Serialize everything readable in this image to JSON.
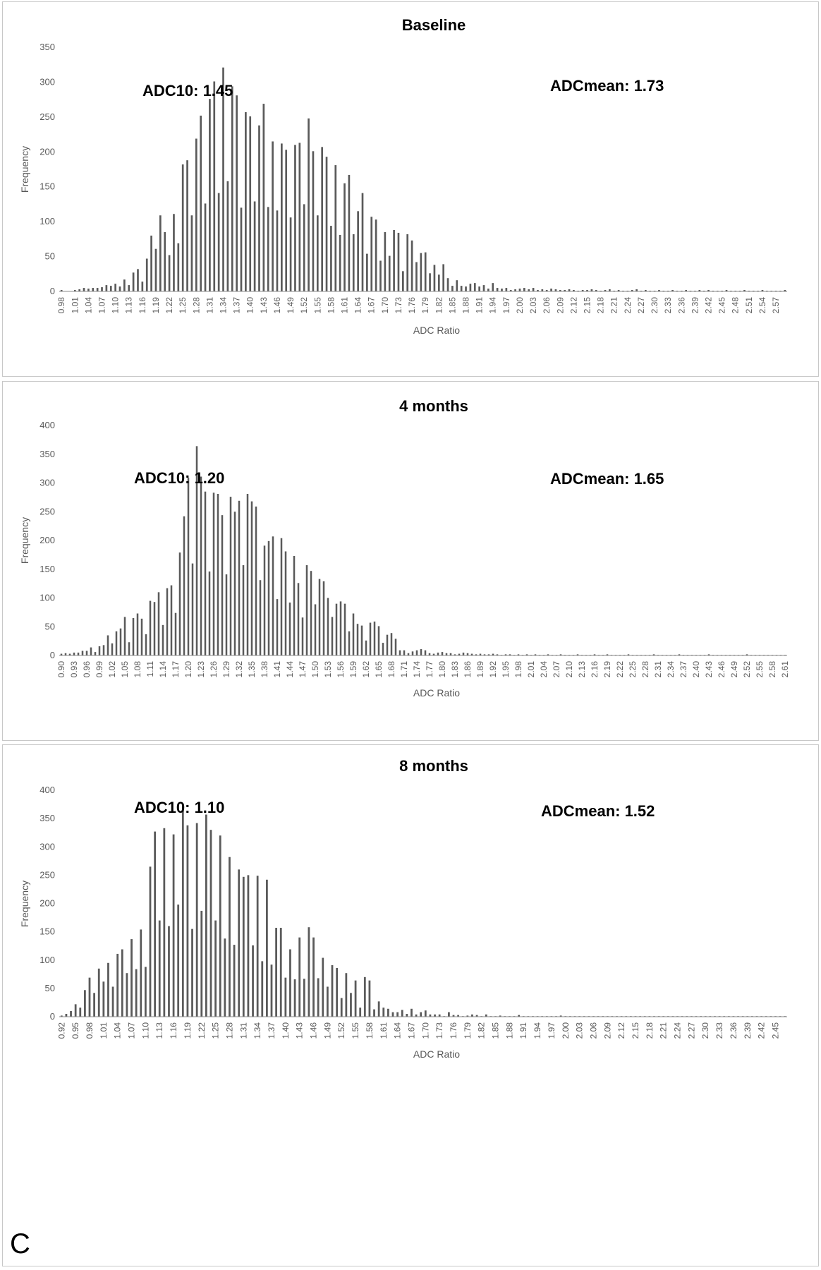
{
  "figure": {
    "panel_letter": "C"
  },
  "colors": {
    "bar": "#5a5a5a",
    "axis": "#8a8a8a",
    "text": "#000000",
    "tick_text": "#595959"
  },
  "chart_data": [
    {
      "type": "bar",
      "title": "Baseline",
      "xlabel": "ADC Ratio",
      "ylabel": "Frequency",
      "ylim": [
        0,
        350
      ],
      "yticks": [
        0,
        50,
        100,
        150,
        200,
        250,
        300,
        350
      ],
      "grid": false,
      "annotations": {
        "adc10": "ADC10:  1.45",
        "adcmean": "ADCmean: 1.73"
      },
      "categories": [
        "0.98",
        "0.99",
        "1.00",
        "1.01",
        "1.02",
        "1.03",
        "1.04",
        "1.05",
        "1.06",
        "1.07",
        "1.08",
        "1.09",
        "1.10",
        "1.11",
        "1.12",
        "1.13",
        "1.14",
        "1.15",
        "1.16",
        "1.17",
        "1.18",
        "1.19",
        "1.20",
        "1.21",
        "1.22",
        "1.23",
        "1.24",
        "1.25",
        "1.26",
        "1.27",
        "1.28",
        "1.29",
        "1.30",
        "1.31",
        "1.32",
        "1.33",
        "1.34",
        "1.35",
        "1.36",
        "1.37",
        "1.38",
        "1.39",
        "1.40",
        "1.41",
        "1.42",
        "1.43",
        "1.44",
        "1.45",
        "1.46",
        "1.47",
        "1.48",
        "1.49",
        "1.50",
        "1.51",
        "1.52",
        "1.53",
        "1.54",
        "1.55",
        "1.56",
        "1.57",
        "1.58",
        "1.59",
        "1.60",
        "1.61",
        "1.62",
        "1.63",
        "1.64",
        "1.65",
        "1.66",
        "1.67",
        "1.68",
        "1.69",
        "1.70",
        "1.71",
        "1.72",
        "1.73",
        "1.74",
        "1.75",
        "1.76",
        "1.77",
        "1.78",
        "1.79",
        "1.80",
        "1.81",
        "1.82",
        "1.83",
        "1.84",
        "1.85",
        "1.86",
        "1.87",
        "1.88",
        "1.89",
        "1.90",
        "1.91",
        "1.92",
        "1.93",
        "1.94",
        "1.95",
        "1.96",
        "1.97",
        "1.98",
        "1.99",
        "2.00",
        "2.01",
        "2.02",
        "2.03",
        "2.04",
        "2.05",
        "2.06",
        "2.07",
        "2.08",
        "2.09",
        "2.10",
        "2.11",
        "2.12",
        "2.13",
        "2.14",
        "2.15",
        "2.16",
        "2.17",
        "2.18",
        "2.19",
        "2.20",
        "2.21",
        "2.22",
        "2.23",
        "2.24",
        "2.25",
        "2.26",
        "2.27",
        "2.28",
        "2.29",
        "2.30",
        "2.31",
        "2.32",
        "2.33",
        "2.34",
        "2.35",
        "2.36",
        "2.37",
        "2.38",
        "2.39",
        "2.40",
        "2.41",
        "2.42",
        "2.43",
        "2.44",
        "2.45",
        "2.46",
        "2.47",
        "2.48",
        "2.49",
        "2.50",
        "2.51",
        "2.52",
        "2.53",
        "2.54",
        "2.55",
        "2.56",
        "2.57",
        "2.58",
        "2.59"
      ],
      "values": [
        2,
        0,
        0,
        2,
        3,
        5,
        4,
        5,
        5,
        6,
        9,
        8,
        11,
        7,
        17,
        9,
        27,
        32,
        14,
        47,
        80,
        61,
        109,
        85,
        52,
        111,
        69,
        182,
        188,
        109,
        219,
        252,
        126,
        276,
        301,
        141,
        321,
        158,
        294,
        281,
        120,
        257,
        251,
        129,
        238,
        269,
        121,
        215,
        116,
        212,
        203,
        106,
        210,
        213,
        125,
        248,
        201,
        109,
        207,
        193,
        94,
        181,
        81,
        155,
        167,
        82,
        115,
        141,
        54,
        107,
        103,
        44,
        85,
        51,
        88,
        84,
        29,
        82,
        73,
        42,
        55,
        56,
        26,
        38,
        24,
        39,
        19,
        8,
        16,
        8,
        7,
        11,
        12,
        7,
        9,
        4,
        12,
        5,
        4,
        5,
        2,
        3,
        4,
        5,
        3,
        5,
        2,
        3,
        2,
        4,
        3,
        2,
        2,
        3,
        2,
        1,
        2,
        2,
        3,
        2,
        1,
        2,
        3,
        1,
        2,
        1,
        1,
        2,
        3,
        1,
        2,
        1,
        1,
        2,
        1,
        1,
        2,
        1,
        1,
        2,
        1,
        1,
        2,
        1,
        2,
        1,
        1,
        1,
        2,
        1,
        1,
        1,
        2,
        1,
        1,
        1,
        2,
        1,
        1,
        1,
        1,
        2
      ]
    },
    {
      "type": "bar",
      "title": "4 months",
      "xlabel": "ADC Ratio",
      "ylabel": "Frequency",
      "ylim": [
        0,
        400
      ],
      "yticks": [
        0,
        50,
        100,
        150,
        200,
        250,
        300,
        350,
        400
      ],
      "grid": false,
      "annotations": {
        "adc10": "ADC10:  1.20",
        "adcmean": "ADCmean: 1.65"
      },
      "categories": [
        "0.90",
        "0.91",
        "0.92",
        "0.93",
        "0.94",
        "0.95",
        "0.96",
        "0.97",
        "0.98",
        "0.99",
        "1.00",
        "1.01",
        "1.02",
        "1.03",
        "1.04",
        "1.05",
        "1.06",
        "1.07",
        "1.08",
        "1.09",
        "1.10",
        "1.11",
        "1.12",
        "1.13",
        "1.14",
        "1.15",
        "1.16",
        "1.17",
        "1.18",
        "1.19",
        "1.20",
        "1.21",
        "1.22",
        "1.23",
        "1.24",
        "1.25",
        "1.26",
        "1.27",
        "1.28",
        "1.29",
        "1.30",
        "1.31",
        "1.32",
        "1.33",
        "1.34",
        "1.35",
        "1.36",
        "1.37",
        "1.38",
        "1.39",
        "1.40",
        "1.41",
        "1.42",
        "1.43",
        "1.44",
        "1.45",
        "1.46",
        "1.47",
        "1.48",
        "1.49",
        "1.50",
        "1.51",
        "1.52",
        "1.53",
        "1.54",
        "1.55",
        "1.56",
        "1.57",
        "1.58",
        "1.59",
        "1.60",
        "1.61",
        "1.62",
        "1.63",
        "1.64",
        "1.65",
        "1.66",
        "1.67",
        "1.68",
        "1.69",
        "1.70",
        "1.71",
        "1.72",
        "1.73",
        "1.74",
        "1.75",
        "1.76",
        "1.77",
        "1.78",
        "1.79",
        "1.80",
        "1.81",
        "1.82",
        "1.83",
        "1.84",
        "1.85",
        "1.86",
        "1.87",
        "1.88",
        "1.89",
        "1.90",
        "1.91",
        "1.92",
        "1.93",
        "1.94",
        "1.95",
        "1.96",
        "1.97",
        "1.98",
        "1.99",
        "2.00",
        "2.01",
        "2.02",
        "2.03",
        "2.04",
        "2.05",
        "2.06",
        "2.07",
        "2.08",
        "2.09",
        "2.10",
        "2.11",
        "2.12",
        "2.13",
        "2.14",
        "2.15",
        "2.16",
        "2.17",
        "2.18",
        "2.19",
        "2.20",
        "2.21",
        "2.22",
        "2.23",
        "2.24",
        "2.25",
        "2.26",
        "2.27",
        "2.28",
        "2.29",
        "2.30",
        "2.31",
        "2.32",
        "2.33",
        "2.34",
        "2.35",
        "2.36",
        "2.37",
        "2.38",
        "2.39",
        "2.40",
        "2.41",
        "2.42",
        "2.43",
        "2.44",
        "2.45",
        "2.46",
        "2.47",
        "2.48",
        "2.49",
        "2.50",
        "2.51",
        "2.52",
        "2.53",
        "2.54",
        "2.55",
        "2.56",
        "2.57",
        "2.58",
        "2.59",
        "2.60",
        "2.61"
      ],
      "values": [
        3,
        4,
        3,
        5,
        5,
        8,
        8,
        14,
        6,
        16,
        18,
        35,
        21,
        42,
        47,
        67,
        23,
        65,
        73,
        64,
        37,
        95,
        93,
        110,
        53,
        117,
        122,
        74,
        179,
        242,
        309,
        160,
        364,
        311,
        285,
        146,
        283,
        281,
        244,
        141,
        276,
        250,
        269,
        157,
        281,
        268,
        259,
        131,
        191,
        199,
        207,
        98,
        204,
        181,
        92,
        173,
        126,
        66,
        157,
        147,
        89,
        133,
        129,
        100,
        67,
        90,
        94,
        90,
        42,
        73,
        55,
        52,
        26,
        57,
        59,
        51,
        22,
        36,
        39,
        29,
        9,
        9,
        4,
        7,
        9,
        11,
        9,
        4,
        3,
        5,
        6,
        4,
        4,
        2,
        3,
        5,
        4,
        3,
        2,
        3,
        2,
        2,
        3,
        2,
        1,
        2,
        2,
        1,
        2,
        1,
        2,
        1,
        2,
        1,
        1,
        2,
        1,
        1,
        2,
        1,
        1,
        1,
        2,
        1,
        1,
        1,
        2,
        1,
        1,
        2,
        1,
        1,
        1,
        1,
        2,
        1,
        1,
        1,
        1,
        1,
        2,
        1,
        1,
        1,
        1,
        1,
        2,
        1,
        1,
        1,
        1,
        1,
        1,
        2,
        1,
        1,
        1,
        1,
        1,
        1,
        1,
        1,
        2,
        1,
        1,
        1,
        1,
        1,
        1,
        1,
        1,
        1
      ]
    },
    {
      "type": "bar",
      "title": "8 months",
      "xlabel": "ADC Ratio",
      "ylabel": "Frequency",
      "ylim": [
        0,
        400
      ],
      "yticks": [
        0,
        50,
        100,
        150,
        200,
        250,
        300,
        350,
        400
      ],
      "grid": false,
      "annotations": {
        "adc10": "ADC10:  1.10",
        "adcmean": "ADCmean: 1.52"
      },
      "categories": [
        "0.92",
        "0.93",
        "0.94",
        "0.95",
        "0.96",
        "0.97",
        "0.98",
        "0.99",
        "1.00",
        "1.01",
        "1.02",
        "1.03",
        "1.04",
        "1.05",
        "1.06",
        "1.07",
        "1.08",
        "1.09",
        "1.10",
        "1.11",
        "1.12",
        "1.13",
        "1.14",
        "1.15",
        "1.16",
        "1.17",
        "1.18",
        "1.19",
        "1.20",
        "1.21",
        "1.22",
        "1.23",
        "1.24",
        "1.25",
        "1.26",
        "1.27",
        "1.28",
        "1.29",
        "1.30",
        "1.31",
        "1.32",
        "1.33",
        "1.34",
        "1.35",
        "1.36",
        "1.37",
        "1.38",
        "1.39",
        "1.40",
        "1.41",
        "1.42",
        "1.43",
        "1.44",
        "1.45",
        "1.46",
        "1.47",
        "1.48",
        "1.49",
        "1.50",
        "1.51",
        "1.52",
        "1.53",
        "1.54",
        "1.55",
        "1.56",
        "1.57",
        "1.58",
        "1.59",
        "1.60",
        "1.61",
        "1.62",
        "1.63",
        "1.64",
        "1.65",
        "1.66",
        "1.67",
        "1.68",
        "1.69",
        "1.70",
        "1.71",
        "1.72",
        "1.73",
        "1.74",
        "1.75",
        "1.76",
        "1.77",
        "1.78",
        "1.79",
        "1.80",
        "1.81",
        "1.82",
        "1.83",
        "1.84",
        "1.85",
        "1.86",
        "1.87",
        "1.88",
        "1.89",
        "1.90",
        "1.91",
        "1.92",
        "1.93",
        "1.94",
        "1.95",
        "1.96",
        "1.97",
        "1.98",
        "1.99",
        "2.00",
        "2.01",
        "2.02",
        "2.03",
        "2.04",
        "2.05",
        "2.06",
        "2.07",
        "2.08",
        "2.09",
        "2.10",
        "2.11",
        "2.12",
        "2.13",
        "2.14",
        "2.15",
        "2.16",
        "2.17",
        "2.18",
        "2.19",
        "2.20",
        "2.21",
        "2.22",
        "2.23",
        "2.24",
        "2.25",
        "2.26",
        "2.27",
        "2.28",
        "2.29",
        "2.30",
        "2.31",
        "2.32",
        "2.33",
        "2.34",
        "2.35",
        "2.36",
        "2.37",
        "2.38",
        "2.39",
        "2.40",
        "2.41",
        "2.42",
        "2.43",
        "2.44",
        "2.45",
        "2.46",
        "2.47"
      ],
      "values": [
        2,
        5,
        10,
        22,
        16,
        47,
        69,
        42,
        85,
        62,
        95,
        53,
        111,
        119,
        77,
        137,
        84,
        154,
        88,
        265,
        327,
        170,
        333,
        160,
        322,
        198,
        376,
        338,
        155,
        342,
        187,
        357,
        330,
        170,
        320,
        138,
        282,
        127,
        260,
        247,
        250,
        126,
        249,
        98,
        242,
        92,
        157,
        157,
        69,
        119,
        66,
        140,
        67,
        158,
        140,
        68,
        104,
        53,
        91,
        86,
        33,
        77,
        42,
        64,
        16,
        70,
        64,
        13,
        27,
        16,
        14,
        8,
        8,
        12,
        5,
        14,
        4,
        8,
        11,
        4,
        4,
        4,
        1,
        8,
        3,
        3,
        1,
        2,
        4,
        3,
        1,
        4,
        1,
        1,
        2,
        1,
        1,
        1,
        3,
        1,
        1,
        1,
        1,
        1,
        1,
        1,
        1,
        2,
        1,
        1,
        1,
        1,
        1,
        1,
        1,
        1,
        1,
        1,
        1,
        1,
        1,
        1,
        1,
        1,
        1,
        1,
        1,
        1,
        1,
        1,
        1,
        1,
        1,
        1,
        1,
        1,
        1,
        1,
        1,
        1,
        1,
        1,
        1,
        1,
        1,
        1,
        1,
        1,
        1,
        1,
        1,
        1,
        1,
        1,
        1,
        1
      ]
    }
  ]
}
